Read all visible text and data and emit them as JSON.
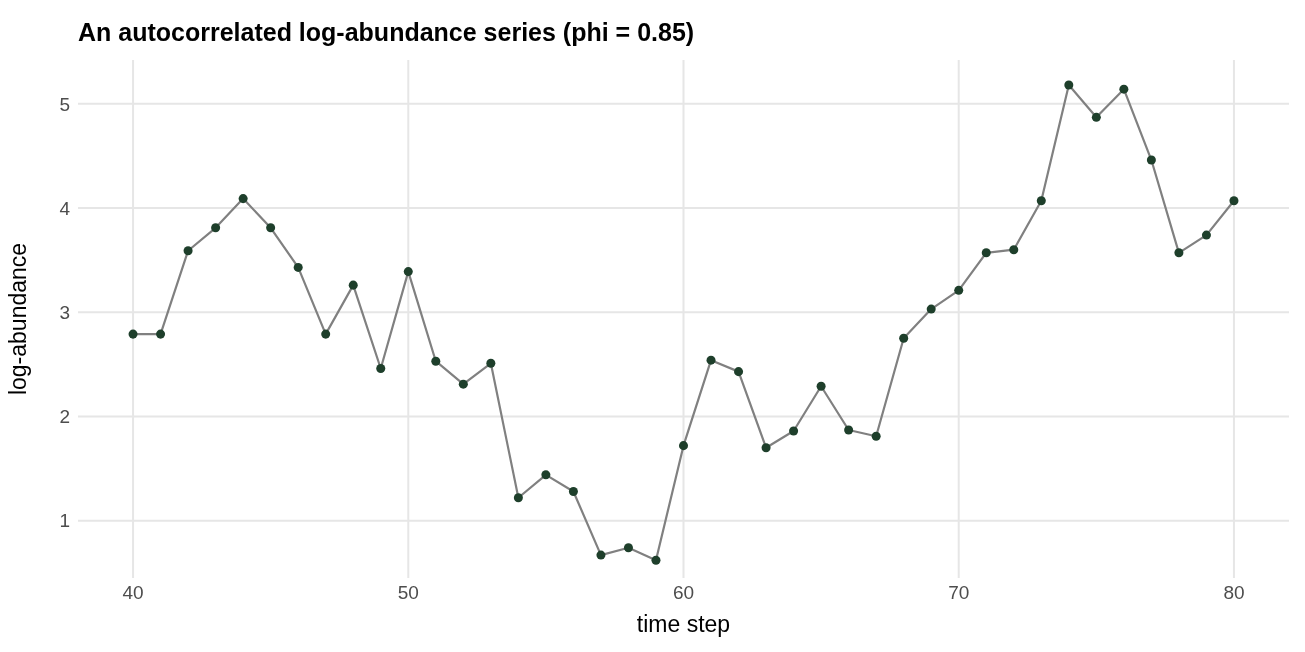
{
  "chart_data": {
    "type": "line",
    "title": "An autocorrelated log-abundance series (phi = 0.85)",
    "xlabel": "time step",
    "ylabel": "log-abundance",
    "x": [
      40,
      41,
      42,
      43,
      44,
      45,
      46,
      47,
      48,
      49,
      50,
      51,
      52,
      53,
      54,
      55,
      56,
      57,
      58,
      59,
      60,
      61,
      62,
      63,
      64,
      65,
      66,
      67,
      68,
      69,
      70,
      71,
      72,
      73,
      74,
      75,
      76,
      77,
      78,
      79,
      80
    ],
    "series": [
      {
        "color": "#808080",
        "marker": "none",
        "values": [
          2.79,
          2.79,
          3.59,
          3.81,
          4.09,
          3.81,
          3.43,
          2.79,
          3.26,
          2.46,
          3.39,
          2.53,
          2.31,
          2.51,
          1.22,
          1.44,
          1.28,
          0.67,
          0.74,
          0.62,
          1.72,
          2.54,
          2.43,
          1.7,
          1.86,
          2.29,
          1.87,
          1.81,
          2.75,
          3.03,
          3.21,
          3.57,
          3.6,
          4.07,
          5.18,
          4.87,
          5.14,
          4.46,
          3.57,
          3.74,
          4.07
        ]
      },
      {
        "type": "scatter",
        "color": "#1e3f2b",
        "marker": "circle",
        "values": [
          2.79,
          2.79,
          3.59,
          3.81,
          4.09,
          3.81,
          3.43,
          2.79,
          3.26,
          2.46,
          3.39,
          2.53,
          2.31,
          2.51,
          1.22,
          1.44,
          1.28,
          0.67,
          0.74,
          0.62,
          1.72,
          2.54,
          2.43,
          1.7,
          1.86,
          2.29,
          1.87,
          1.81,
          2.75,
          3.03,
          3.21,
          3.57,
          3.6,
          4.07,
          5.18,
          4.87,
          5.14,
          4.46,
          3.57,
          3.74,
          4.07
        ]
      }
    ],
    "xlim": [
      38,
      82
    ],
    "xticks": [
      40,
      50,
      60,
      70,
      80
    ],
    "ylim": [
      0.45,
      5.42
    ],
    "yticks": [
      1,
      2,
      3,
      4,
      5
    ],
    "grid": true,
    "line_style": "solid"
  }
}
